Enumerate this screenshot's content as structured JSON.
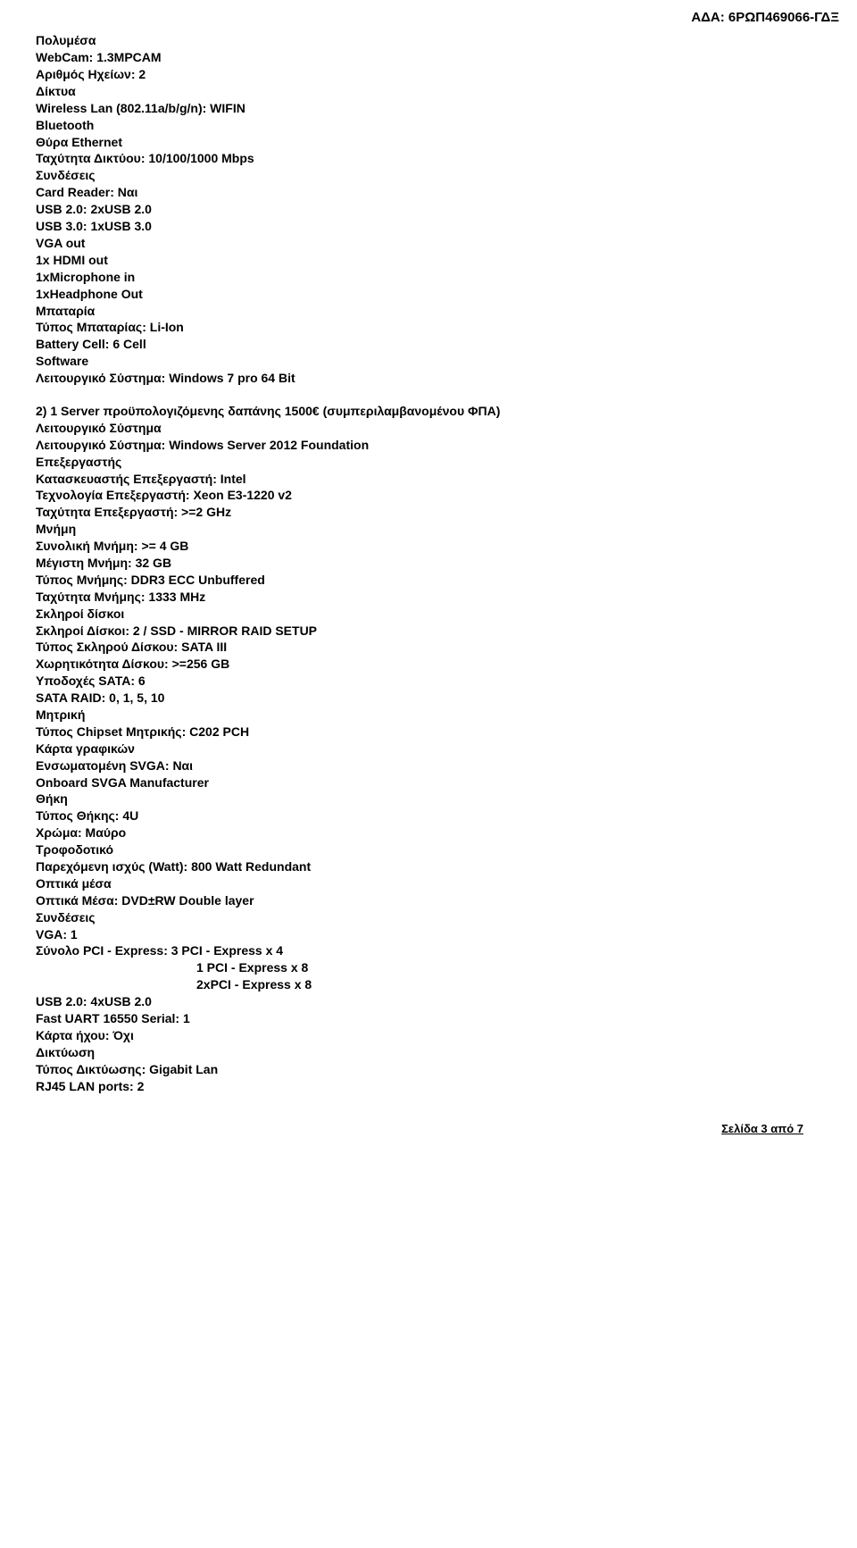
{
  "header_code": "ΑΔΑ: 6ΡΩΠ469066-ΓΔΞ",
  "section1": {
    "lines": [
      "Πολυμέσα",
      "WebCam: 1.3MPCAM",
      "Αριθμός Ηχείων: 2",
      "Δίκτυα",
      "Wireless Lan (802.11a/b/g/n): WIFIN",
      "Bluetooth",
      "Θύρα Ethernet",
      "Ταχύτητα Δικτύου: 10/100/1000 Mbps",
      "Συνδέσεις",
      "Card Reader: Ναι",
      "USB 2.0: 2xUSB 2.0",
      "USB 3.0: 1xUSB 3.0",
      "VGA out",
      "1x HDMI out",
      "1xMicrophone in",
      "1xHeadphone Out",
      "Μπαταρία",
      "Τύπος Μπαταρίας: Li-Ion",
      "Battery Cell: 6 Cell",
      "Software",
      "Λειτουργικό Σύστημα: Windows 7 pro 64 Bit"
    ]
  },
  "section2": {
    "heading": "2) 1 Server προϋπολογιζόμενης δαπάνης 1500€ (συμπεριλαμβανομένου ΦΠΑ)",
    "lines": [
      "Λειτουργικό Σύστημα",
      "Λειτουργικό Σύστημα: Windows Server 2012 Foundation",
      "Επεξεργαστής",
      "Κατασκευαστής Επεξεργαστή: Intel",
      "Τεχνολογία Επεξεργαστή: Xeon E3-1220 v2",
      "Ταχύτητα Επεξεργαστή: >=2 GHz",
      "Μνήμη",
      "Συνολική Μνήμη: >= 4 GB",
      "Μέγιστη Μνήμη: 32 GB",
      "Τύπος Μνήμης: DDR3 ECC Unbuffered",
      "Ταχύτητα Μνήμης: 1333 MHz",
      "Σκληροί δίσκοι",
      "Σκληροί Δίσκοι: 2  / SSD - MIRROR RAID SETUP",
      "Τύπος Σκληρού Δίσκου: SATA III",
      "Χωρητικότητα Δίσκου: >=256 GB",
      "Υποδοχές SATA: 6",
      "SATA RAID: 0, 1, 5, 10",
      "Μητρική",
      "Τύπος Chipset Μητρικής: C202 PCH",
      "Κάρτα γραφικών",
      "Ενσωματομένη SVGA: Ναι",
      "Onboard SVGA Manufacturer",
      "Θήκη",
      "Τύπος Θήκης: 4U",
      "Χρώμα: Μαύρο",
      "Τροφοδοτικό",
      "Παρεχόμενη ισχύς (Watt): 800 Watt Redundant",
      "Οπτικά μέσα",
      "Οπτικά Μέσα: DVD±RW Double layer",
      "Συνδέσεις",
      "VGA: 1",
      "Σύνολο PCI - Express: 3  PCI - Express x 4"
    ],
    "indented_lines": [
      "1  PCI - Express x 8",
      "2xPCI - Express x 8"
    ],
    "post_lines": [
      "USB 2.0: 4xUSB 2.0",
      "Fast UART 16550 Serial: 1",
      "Κάρτα ήχου: Όχι",
      "Δικτύωση",
      "Τύπος Δικτύωσης: Gigabit Lan",
      "RJ45 LAN ports: 2"
    ]
  },
  "footer": "Σελίδα 3 από 7"
}
